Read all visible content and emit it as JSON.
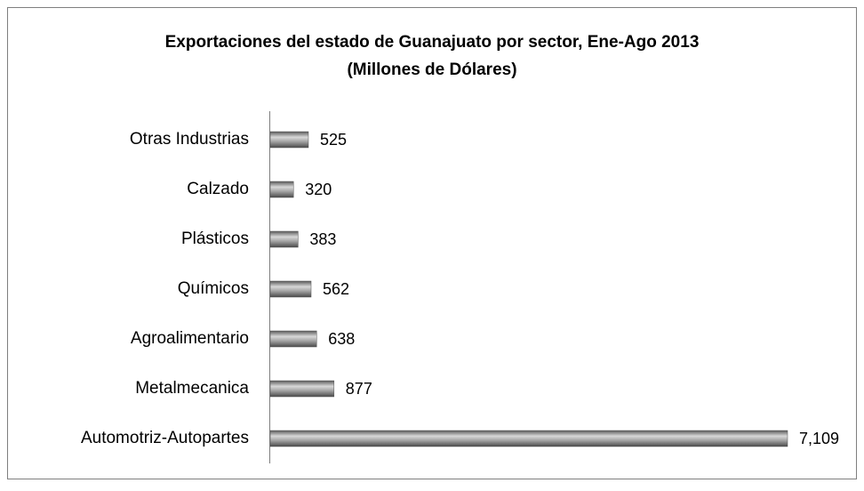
{
  "chart_data": {
    "type": "bar",
    "orientation": "horizontal",
    "title": "Exportaciones del estado de Guanajuato por sector, Ene-Ago 2013",
    "subtitle": "(Millones de Dólares)",
    "categories": [
      "Otras Industrias",
      "Calzado",
      "Plásticos",
      "Químicos",
      "Agroalimentario",
      "Metalmecanica",
      "Automotriz-Autopartes"
    ],
    "values": [
      525,
      320,
      383,
      562,
      638,
      877,
      7109
    ],
    "value_labels": [
      "525",
      "320",
      "383",
      "562",
      "638",
      "877",
      "7,109"
    ],
    "color": "#8c8c8c"
  }
}
